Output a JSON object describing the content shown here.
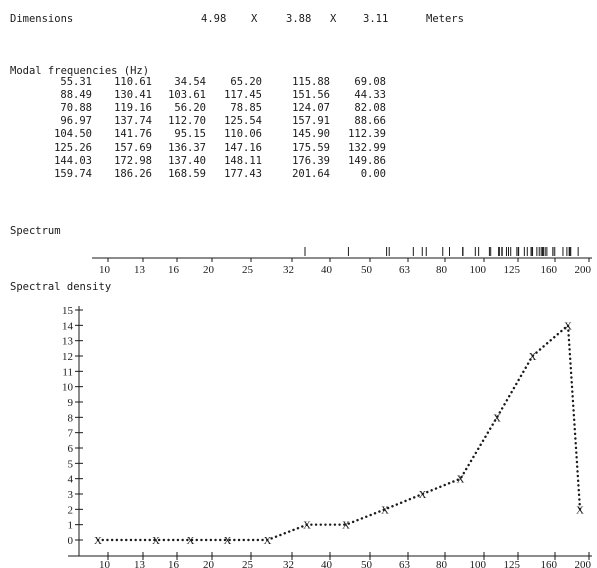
{
  "dimensions": {
    "label": "Dimensions",
    "x": "4.98",
    "times1": "X",
    "y": "3.88",
    "times2": "X",
    "z": "3.11",
    "unit": "Meters"
  },
  "modal": {
    "title": "Modal frequencies (Hz)",
    "rows": [
      [
        "55.31",
        "110.61",
        "34.54",
        "65.20",
        "115.88",
        "69.08"
      ],
      [
        "88.49",
        "130.41",
        "103.61",
        "117.45",
        "151.56",
        "44.33"
      ],
      [
        "70.88",
        "119.16",
        "56.20",
        "78.85",
        "124.07",
        "82.08"
      ],
      [
        "96.97",
        "137.74",
        "112.70",
        "125.54",
        "157.91",
        "88.66"
      ],
      [
        "104.50",
        "141.76",
        "95.15",
        "110.06",
        "145.90",
        "112.39"
      ],
      [
        "125.26",
        "157.69",
        "136.37",
        "147.16",
        "175.59",
        "132.99"
      ],
      [
        "144.03",
        "172.98",
        "137.40",
        "148.11",
        "176.39",
        "149.86"
      ],
      [
        "159.74",
        "186.26",
        "168.59",
        "177.43",
        "201.64",
        "0.00"
      ]
    ]
  },
  "spectrum": {
    "title": "Spectrum",
    "ticks": [
      "10",
      "13",
      "16",
      "20",
      "25",
      "32",
      "40",
      "50",
      "63",
      "80",
      "100",
      "125",
      "160",
      "200"
    ],
    "lines": [
      34.54,
      44.33,
      55.31,
      56.2,
      65.2,
      69.08,
      70.88,
      78.85,
      82.08,
      88.49,
      88.66,
      95.15,
      96.97,
      103.61,
      104.5,
      110.06,
      110.61,
      112.39,
      112.7,
      115.88,
      117.45,
      119.16,
      124.07,
      125.26,
      125.54,
      130.41,
      132.99,
      136.37,
      137.4,
      137.74,
      141.76,
      144.03,
      145.9,
      147.16,
      148.11,
      149.86,
      151.56,
      157.69,
      157.91,
      159.74,
      168.59,
      172.98,
      175.59,
      176.39,
      177.43,
      186.26,
      201.64
    ]
  },
  "chart_data": {
    "type": "line",
    "title": "Spectral density",
    "xlabel": "",
    "ylabel": "",
    "categories": [
      "10",
      "13",
      "16",
      "20",
      "25",
      "32",
      "40",
      "50",
      "63",
      "80",
      "100",
      "125",
      "160",
      "200"
    ],
    "yticks": [
      "0",
      "1",
      "2",
      "3",
      "4",
      "5",
      "6",
      "7",
      "8",
      "9",
      "10",
      "11",
      "12",
      "13",
      "14",
      "15"
    ],
    "ylim": [
      0,
      15
    ],
    "marker": "X",
    "line_style": "dotted",
    "grid": false,
    "series": [
      {
        "values": [
          0,
          0,
          0,
          0,
          0,
          1,
          1,
          2,
          3,
          4,
          8,
          12,
          14,
          2
        ]
      }
    ]
  }
}
